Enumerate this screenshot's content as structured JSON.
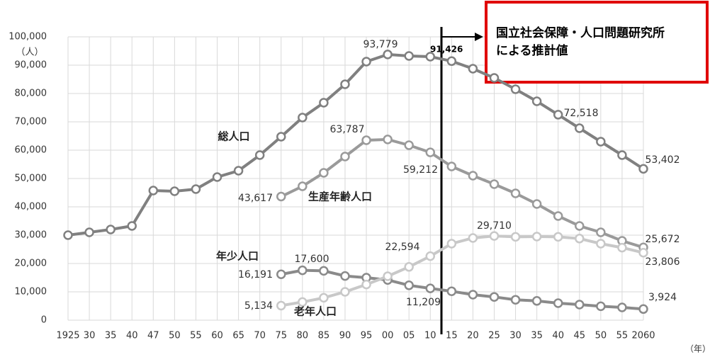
{
  "chart_data": {
    "type": "line",
    "categories": [
      "1925",
      "30",
      "35",
      "40",
      "47",
      "50",
      "55",
      "60",
      "65",
      "70",
      "75",
      "80",
      "85",
      "90",
      "95",
      "00",
      "05",
      "10",
      "15",
      "20",
      "25",
      "30",
      "35",
      "40",
      "45",
      "50",
      "55",
      "2060"
    ],
    "series": [
      {
        "name": "総人口",
        "color": "#808080",
        "values": [
          30000,
          31000,
          32000,
          33250,
          45750,
          45500,
          46250,
          50500,
          52750,
          58250,
          64750,
          71500,
          76750,
          83250,
          91250,
          93779,
          93250,
          93000,
          91426,
          88750,
          85500,
          81500,
          77250,
          72518,
          67750,
          63000,
          58250,
          53402
        ],
        "value_labels": [
          null,
          null,
          null,
          null,
          null,
          null,
          null,
          null,
          null,
          null,
          null,
          null,
          null,
          null,
          null,
          "93,779",
          null,
          null,
          "91,426",
          null,
          null,
          null,
          null,
          "72,518",
          null,
          null,
          null,
          "53,402"
        ]
      },
      {
        "name": "生産年齢人口",
        "color": "#9a9a9a",
        "values": [
          null,
          null,
          null,
          null,
          null,
          null,
          null,
          null,
          null,
          null,
          43617,
          47250,
          52000,
          57750,
          63500,
          63787,
          61750,
          59212,
          54250,
          51000,
          48000,
          44750,
          41000,
          36750,
          33250,
          31000,
          28000,
          25672
        ],
        "value_labels": [
          null,
          null,
          null,
          null,
          null,
          null,
          null,
          null,
          null,
          null,
          "43,617",
          null,
          null,
          null,
          null,
          "63,787",
          null,
          "59,212",
          null,
          null,
          null,
          null,
          null,
          null,
          null,
          null,
          null,
          "25,672"
        ]
      },
      {
        "name": "年少人口",
        "color": "#8a8a8a",
        "values": [
          null,
          null,
          null,
          null,
          null,
          null,
          null,
          null,
          null,
          null,
          16191,
          17600,
          17400,
          15600,
          15000,
          14200,
          12300,
          11209,
          10200,
          9000,
          8200,
          7200,
          6800,
          6000,
          5500,
          4900,
          4500,
          3924
        ],
        "value_labels": [
          null,
          null,
          null,
          null,
          null,
          null,
          null,
          null,
          null,
          null,
          "16,191",
          "17,600",
          null,
          null,
          null,
          null,
          null,
          "11,209",
          null,
          null,
          null,
          null,
          null,
          null,
          null,
          null,
          null,
          "3,924"
        ]
      },
      {
        "name": "老年人口",
        "color": "#c8c8c8",
        "values": [
          null,
          null,
          null,
          null,
          null,
          null,
          null,
          null,
          null,
          null,
          5134,
          6400,
          7900,
          10000,
          12600,
          15500,
          18800,
          22594,
          27000,
          29000,
          29710,
          29400,
          29500,
          29400,
          28800,
          27000,
          25600,
          23806
        ],
        "value_labels": [
          null,
          null,
          null,
          null,
          null,
          null,
          null,
          null,
          null,
          null,
          "5,134",
          null,
          null,
          null,
          null,
          null,
          null,
          "22,594",
          null,
          null,
          "29,710",
          null,
          null,
          null,
          null,
          null,
          null,
          "23,806"
        ]
      }
    ],
    "ylim": [
      0,
      100000
    ],
    "yticks": [
      0,
      {
        "value": 10000,
        "label": "10,000"
      },
      {
        "value": 20000,
        "label": "20,000"
      },
      {
        "value": 30000,
        "label": "30,000"
      },
      {
        "value": 40000,
        "label": "40,000"
      },
      {
        "value": 50000,
        "label": "50,000"
      },
      {
        "value": 60000,
        "label": "60,000"
      },
      {
        "value": 70000,
        "label": "70,000"
      },
      {
        "value": 80000,
        "label": "80,000"
      },
      {
        "value": 90000,
        "label": "90,000"
      },
      {
        "value": 100000,
        "label": "100,000"
      }
    ],
    "y_unit": "（人）",
    "x_unit": "（年）",
    "annotation": [
      "国立社会保障・人口問題研究所",
      "による推計値"
    ],
    "grid": true
  }
}
